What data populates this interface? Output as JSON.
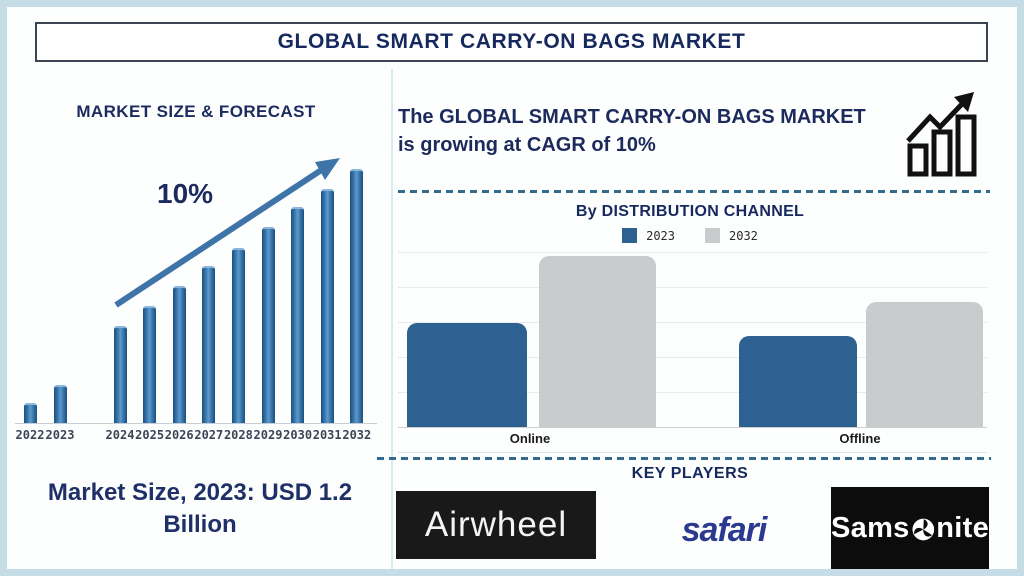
{
  "header": {
    "title": "GLOBAL SMART CARRY-ON BAGS MARKET"
  },
  "left_panel": {
    "chart_title": "MARKET SIZE & FORECAST",
    "growth_label": "10%",
    "market_size_note": "Market Size, 2023: USD 1.2 Billion"
  },
  "right_panel": {
    "headline": "The GLOBAL SMART CARRY-ON BAGS MARKET is growing at CAGR of 10%",
    "growth_icon": "bar-chart-growth-icon",
    "distribution_title": "By DISTRIBUTION CHANNEL",
    "key_players_title": "KEY PLAYERS",
    "key_players": [
      {
        "name": "Airwheel",
        "logo_style": "white-text-on-black"
      },
      {
        "name": "safari",
        "logo_style": "blue-italic-text"
      },
      {
        "name": "Samsonite",
        "name_prefix": "Sams",
        "name_suffix": "nite",
        "logo_style": "white-text-on-black-with-orb"
      }
    ]
  },
  "colors": {
    "accent_navy": "#16295f",
    "bar_blue": "#2d6191",
    "bar_gray": "#c9cbcd",
    "forecast_bar_blue": "#2e6da3",
    "frame_light_blue": "#c6dde8",
    "dashed_line": "#336b8e",
    "safari_blue": "#2b3a8f"
  },
  "chart_data": [
    {
      "type": "bar",
      "title": "MARKET SIZE & FORECAST",
      "categories": [
        "2022",
        "2023",
        "2024",
        "2025",
        "2026",
        "2027",
        "2028",
        "2029",
        "2030",
        "2031",
        "2032"
      ],
      "values_relative_pct_of_max": [
        8,
        15,
        38,
        46,
        54,
        62,
        69,
        77,
        85,
        92,
        100
      ],
      "annotations": [
        "10% CAGR trend arrow rising left-to-right"
      ],
      "known_values": {
        "2023": "USD 1.2 Billion"
      },
      "xlabel": "",
      "ylabel": "",
      "yaxis_visible": false,
      "grid": false,
      "bar_color": "#2e6da3"
    },
    {
      "type": "bar",
      "title": "By DISTRIBUTION CHANNEL",
      "categories": [
        "Online",
        "Offline"
      ],
      "series": [
        {
          "name": "2023",
          "color": "#2d6191",
          "values_relative_pct_of_max": [
            61,
            53
          ]
        },
        {
          "name": "2032",
          "color": "#c9cbcd",
          "values_relative_pct_of_max": [
            100,
            73
          ]
        }
      ],
      "xlabel": "",
      "ylabel": "",
      "yaxis_visible": false,
      "grid": true,
      "legend_position": "top"
    }
  ]
}
